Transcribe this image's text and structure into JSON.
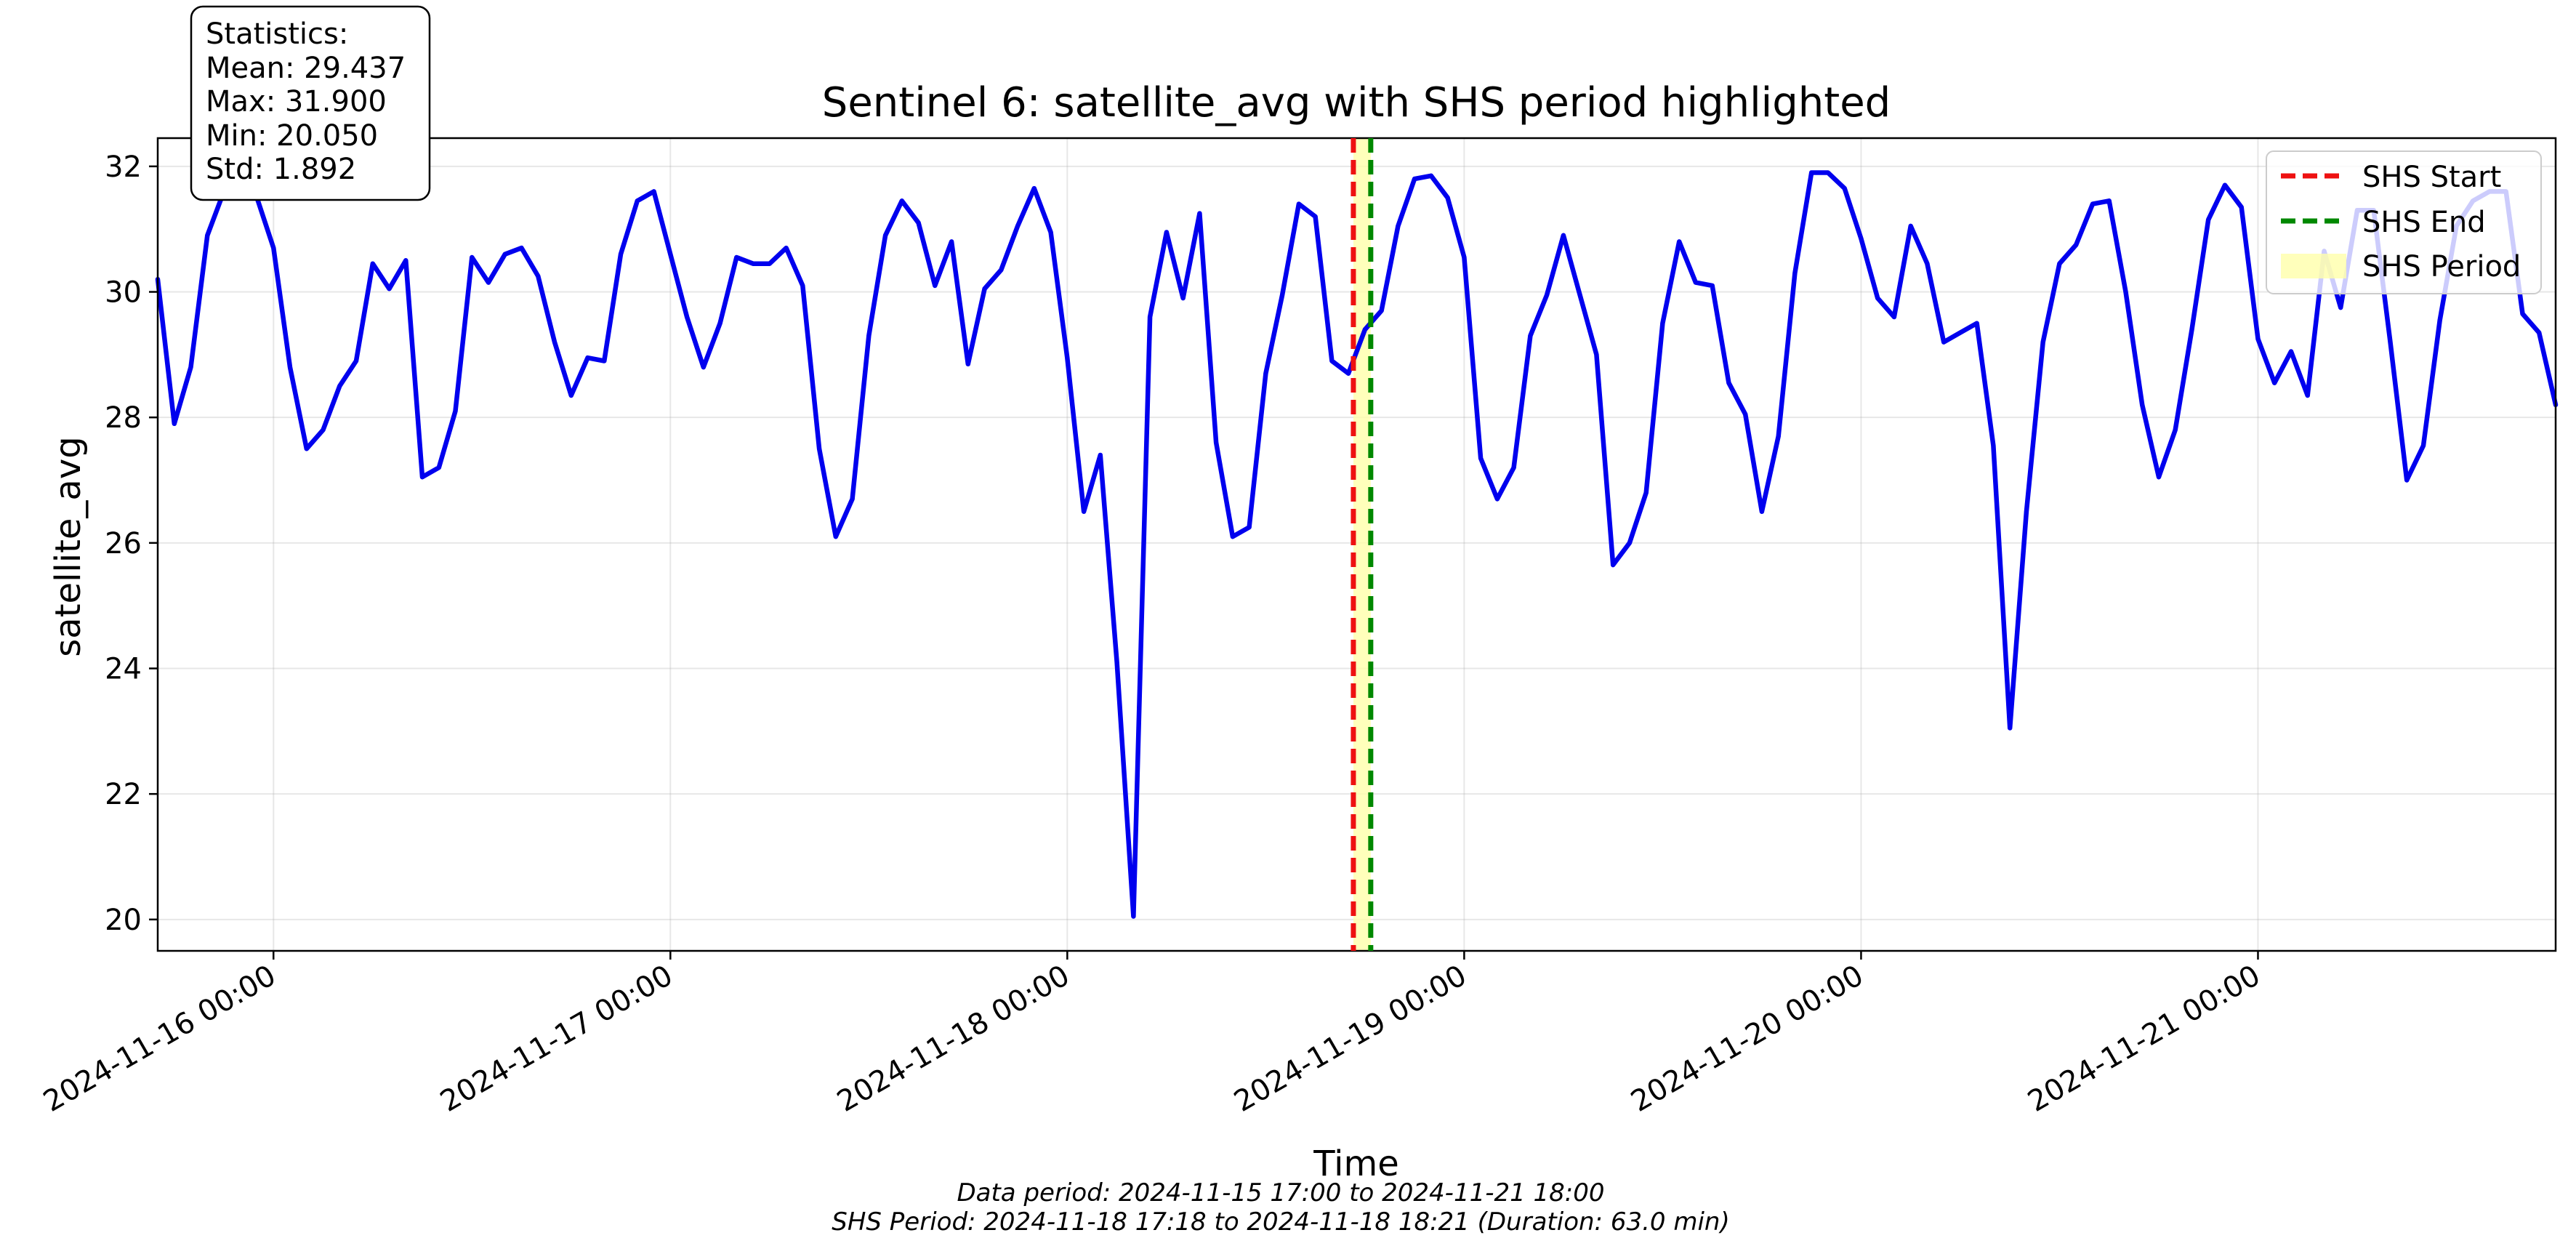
{
  "chart_data": {
    "type": "line",
    "title": "Sentinel 6: satellite_avg with SHS period highlighted",
    "xlabel": "Time",
    "ylabel": "satellite_avg",
    "x_range": [
      "2024-11-15 17:00",
      "2024-11-21 18:00"
    ],
    "ylim": [
      19.5,
      32.45
    ],
    "y_ticks": [
      20,
      22,
      24,
      26,
      28,
      30,
      32
    ],
    "x_ticks": [
      "2024-11-16 00:00",
      "2024-11-17 00:00",
      "2024-11-18 00:00",
      "2024-11-19 00:00",
      "2024-11-20 00:00",
      "2024-11-21 00:00"
    ],
    "x_tick_labels": [
      "2024-11-16 00:00",
      "2024-11-17 00:00",
      "2024-11-18 00:00",
      "2024-11-19 00:00",
      "2024-11-20 00:00",
      "2024-11-21 00:00"
    ],
    "grid": true,
    "legend_position": "top-right",
    "series": [
      {
        "color": "#0000ee",
        "x_start": "2024-11-15 17:00",
        "x_step_minutes": 60,
        "values": [
          30.2,
          27.9,
          28.8,
          30.9,
          31.6,
          31.75,
          31.5,
          30.7,
          28.8,
          27.5,
          27.8,
          28.5,
          28.9,
          30.45,
          30.05,
          30.5,
          27.05,
          27.2,
          28.1,
          30.55,
          30.15,
          30.6,
          30.7,
          30.25,
          29.2,
          28.35,
          28.95,
          28.9,
          30.6,
          31.45,
          31.6,
          30.6,
          29.6,
          28.8,
          29.5,
          30.55,
          30.45,
          30.45,
          30.7,
          30.1,
          27.5,
          26.1,
          26.7,
          29.3,
          30.9,
          31.45,
          31.1,
          30.1,
          30.8,
          28.85,
          30.05,
          30.35,
          31.05,
          31.65,
          30.95,
          28.95,
          26.5,
          27.4,
          24.1,
          20.05,
          29.6,
          30.95,
          29.9,
          31.25,
          27.6,
          26.1,
          26.25,
          28.7,
          29.95,
          31.4,
          31.2,
          28.9,
          28.7,
          29.4,
          29.7,
          31.05,
          31.8,
          31.85,
          31.5,
          30.55,
          27.35,
          26.7,
          27.2,
          29.3,
          29.95,
          30.9,
          29.95,
          29.0,
          25.65,
          26.0,
          26.8,
          29.5,
          30.8,
          30.15,
          30.1,
          28.55,
          28.05,
          26.5,
          27.7,
          30.3,
          31.9,
          31.9,
          31.65,
          30.85,
          29.9,
          29.6,
          31.05,
          30.45,
          29.2,
          29.35,
          29.5,
          27.55,
          23.05,
          26.5,
          29.2,
          30.45,
          30.75,
          31.4,
          31.45,
          30.0,
          28.2,
          27.05,
          27.8,
          29.4,
          31.15,
          31.7,
          31.35,
          29.25,
          28.55,
          29.05,
          28.35,
          30.65,
          29.75,
          31.3,
          31.3,
          29.2,
          27.0,
          27.55,
          29.55,
          31.05,
          31.45,
          31.6,
          31.6,
          29.65,
          29.35,
          28.2
        ]
      }
    ],
    "shs": {
      "start": "2024-11-18 17:18",
      "end": "2024-11-18 18:21",
      "start_color": "#ee1111",
      "end_color": "#008800",
      "fill_color": "#ffffaa"
    },
    "legend": [
      {
        "label": "SHS Start",
        "style": "dashed",
        "color": "#ee1111"
      },
      {
        "label": "SHS End",
        "style": "dashed",
        "color": "#008800"
      },
      {
        "label": "SHS Period",
        "style": "fill",
        "color": "#ffffaa"
      }
    ],
    "stats_box": {
      "title": "Statistics:",
      "lines": [
        "Mean: 29.437",
        "Max: 31.900",
        "Min: 20.050",
        "Std: 1.892"
      ]
    },
    "footer": [
      "Data period: 2024-11-15 17:00 to 2024-11-21 18:00",
      "SHS Period: 2024-11-18 17:18 to 2024-11-18 18:21 (Duration: 63.0 min)"
    ]
  }
}
